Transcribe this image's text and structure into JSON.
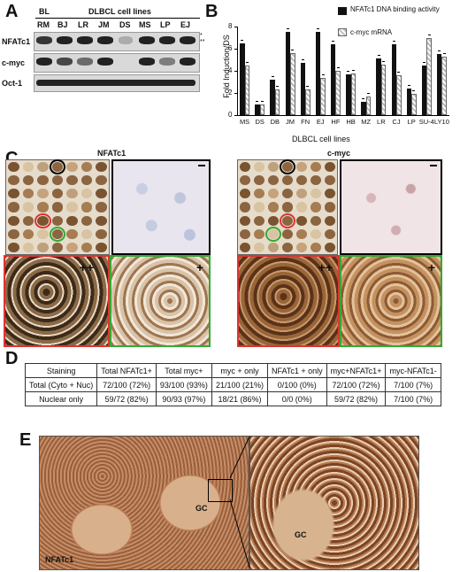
{
  "panelA": {
    "label": "A",
    "group_bl": "BL",
    "group_dlbcl": "DLBCL cell lines",
    "lanes": [
      "RM",
      "BJ",
      "LR",
      "JM",
      "DS",
      "MS",
      "LP",
      "EJ"
    ],
    "rows": [
      "NFATc1",
      "c-myc",
      "Oct-1"
    ],
    "markers": [
      "*",
      "**"
    ]
  },
  "panelB": {
    "label": "B",
    "chart_data": {
      "type": "bar",
      "ylabel": "Fold Induction/DS",
      "xlabel": "DLBCL cell lines",
      "ylim": [
        0,
        8
      ],
      "yticks": [
        "0",
        "2",
        "4",
        "6",
        "8"
      ],
      "categories": [
        "MS",
        "DS",
        "DB",
        "JM",
        "FN",
        "EJ",
        "HF",
        "HB",
        "MZ",
        "LR",
        "CJ",
        "LP",
        "SU-4",
        "LY10"
      ],
      "series": [
        {
          "name": "NFATc1 DNA binding activity",
          "values": [
            6.5,
            1.0,
            3.2,
            7.5,
            4.7,
            7.5,
            6.4,
            3.7,
            1.2,
            5.1,
            6.4,
            2.4,
            4.5,
            5.5
          ],
          "color": "#111111"
        },
        {
          "name": "c-myc mRNA",
          "values": [
            4.5,
            1.0,
            2.3,
            5.6,
            2.3,
            3.4,
            4.0,
            3.8,
            1.7,
            4.6,
            3.6,
            1.9,
            7.0,
            5.3
          ],
          "color": "#bbbbbb"
        }
      ],
      "legend": "top-right"
    }
  },
  "panelC": {
    "label": "C",
    "left_title": "NFATc1",
    "right_title": "c-myc"
  },
  "panelD": {
    "label": "D",
    "headers": [
      "Staining",
      "Total NFATc1+",
      "Total myc+",
      "myc + only",
      "NFATc1 + only",
      "myc+NFATc1+",
      "myc-NFATc1-"
    ],
    "rows": [
      [
        "Total (Cyto + Nuc)",
        "72/100 (72%)",
        "93/100 (93%)",
        "21/100 (21%)",
        "0/100 (0%)",
        "72/100 (72%)",
        "7/100 (7%)"
      ],
      [
        "Nuclear only",
        "59/72 (82%)",
        "90/93 (97%)",
        "18/21 (86%)",
        "0/0 (0%)",
        "59/72 (82%)",
        "7/100 (7%)"
      ]
    ]
  },
  "panelE": {
    "label": "E",
    "gc_left": "GC",
    "gc_right": "GC",
    "stain": "NFATc1"
  }
}
